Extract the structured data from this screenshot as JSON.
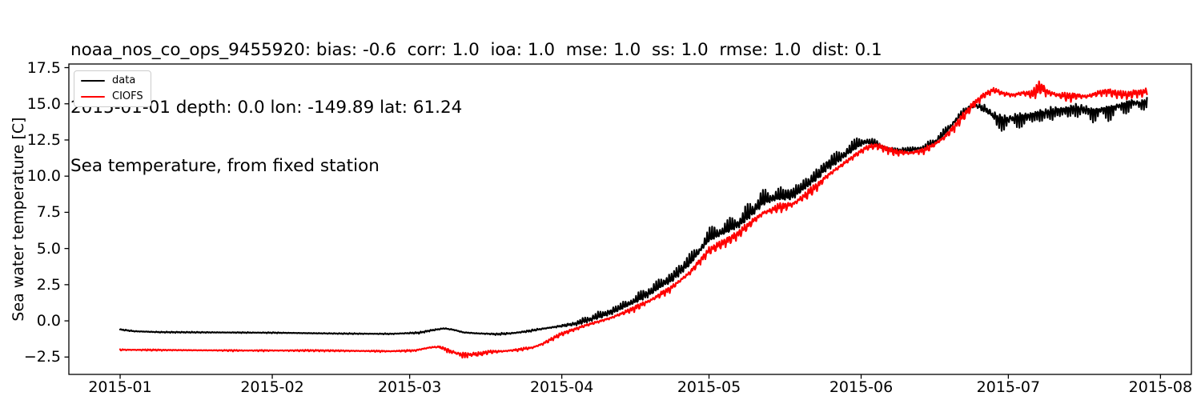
{
  "header": {
    "line1": "noaa_nos_co_ops_9455920: bias: -0.6  corr: 1.0  ioa: 1.0  mse: 1.0  ss: 1.0  rmse: 1.0  dist: 0.1",
    "line2": "2015-01-01 depth: 0.0 lon: -149.89 lat: 61.24",
    "line3": "Sea temperature, from fixed station"
  },
  "chart_data": {
    "type": "line",
    "title": "Sea temperature, from fixed station",
    "xlabel": "",
    "ylabel": "Sea water temperature [C]",
    "x_axis": "time, days since 2015-01-01",
    "xlim_days": [
      -10.45,
      218.3
    ],
    "ylim": [
      -3.7,
      17.75
    ],
    "grid": false,
    "x_ticks": [
      {
        "label": "2015-01",
        "day": 0
      },
      {
        "label": "2015-02",
        "day": 31
      },
      {
        "label": "2015-03",
        "day": 59
      },
      {
        "label": "2015-04",
        "day": 90
      },
      {
        "label": "2015-05",
        "day": 120
      },
      {
        "label": "2015-06",
        "day": 151
      },
      {
        "label": "2015-07",
        "day": 181
      },
      {
        "label": "2015-08",
        "day": 212
      }
    ],
    "y_ticks": [
      {
        "label": "17.5",
        "value": 17.5
      },
      {
        "label": "15.0",
        "value": 15.0
      },
      {
        "label": "12.5",
        "value": 12.5
      },
      {
        "label": "10.0",
        "value": 10.0
      },
      {
        "label": "7.5",
        "value": 7.5
      },
      {
        "label": "5.0",
        "value": 5.0
      },
      {
        "label": "2.5",
        "value": 2.5
      },
      {
        "label": "0.0",
        "value": 0.0
      },
      {
        "label": "−2.5",
        "value": -2.5
      }
    ],
    "legend": {
      "position": "upper left",
      "entries": [
        {
          "label": "data",
          "color": "#000000"
        },
        {
          "label": "CIOFS",
          "color": "#ff0000"
        }
      ]
    },
    "series": [
      {
        "name": "data",
        "color": "#000000",
        "t0": 0,
        "t1": 209.3,
        "phase": 0,
        "anchors": [
          [
            0,
            -0.6
          ],
          [
            3,
            -0.72
          ],
          [
            8,
            -0.78
          ],
          [
            20,
            -0.8
          ],
          [
            31,
            -0.82
          ],
          [
            45,
            -0.88
          ],
          [
            55,
            -0.9
          ],
          [
            61,
            -0.82
          ],
          [
            63,
            -0.68
          ],
          [
            66,
            -0.52
          ],
          [
            68,
            -0.62
          ],
          [
            70,
            -0.8
          ],
          [
            73,
            -0.87
          ],
          [
            77,
            -0.92
          ],
          [
            80,
            -0.85
          ],
          [
            83,
            -0.72
          ],
          [
            86,
            -0.55
          ],
          [
            88,
            -0.45
          ],
          [
            90,
            -0.35
          ],
          [
            93,
            -0.2
          ],
          [
            96,
            0.1
          ],
          [
            100,
            0.55
          ],
          [
            104,
            1.15
          ],
          [
            108,
            1.9
          ],
          [
            112,
            2.75
          ],
          [
            116,
            3.9
          ],
          [
            120,
            5.6
          ],
          [
            123,
            6.1
          ],
          [
            126,
            6.6
          ],
          [
            129,
            7.5
          ],
          [
            131,
            8.2
          ],
          [
            134,
            8.45
          ],
          [
            137,
            8.6
          ],
          [
            140,
            9.3
          ],
          [
            142,
            9.9
          ],
          [
            144,
            10.6
          ],
          [
            146,
            11.0
          ],
          [
            148,
            11.5
          ],
          [
            150,
            12.0
          ],
          [
            152,
            12.35
          ],
          [
            154,
            12.15
          ],
          [
            156,
            11.85
          ],
          [
            158,
            11.72
          ],
          [
            161,
            11.78
          ],
          [
            164,
            11.95
          ],
          [
            166,
            12.3
          ],
          [
            168,
            12.9
          ],
          [
            170,
            13.7
          ],
          [
            172,
            14.4
          ],
          [
            174,
            14.95
          ],
          [
            176,
            14.75
          ],
          [
            178,
            14.3
          ],
          [
            180,
            14.0
          ],
          [
            182,
            14.1
          ],
          [
            184,
            14.25
          ],
          [
            186,
            14.35
          ],
          [
            188,
            14.5
          ],
          [
            190,
            14.6
          ],
          [
            193,
            14.75
          ],
          [
            196,
            14.8
          ],
          [
            198,
            14.6
          ],
          [
            200,
            14.7
          ],
          [
            202,
            14.8
          ],
          [
            204,
            15.0
          ],
          [
            206,
            15.2
          ],
          [
            208,
            15.1
          ],
          [
            209.3,
            15.3
          ]
        ],
        "osc_amp": [
          [
            0,
            0.05
          ],
          [
            55,
            0.05
          ],
          [
            60,
            0.08
          ],
          [
            70,
            0.08
          ],
          [
            85,
            0.1
          ],
          [
            92,
            0.12
          ],
          [
            100,
            0.18
          ],
          [
            108,
            0.22
          ],
          [
            116,
            0.25
          ],
          [
            124,
            0.28
          ],
          [
            132,
            0.3
          ],
          [
            140,
            0.28
          ],
          [
            148,
            0.28
          ],
          [
            153,
            0.22
          ],
          [
            158,
            0.15
          ],
          [
            164,
            0.15
          ],
          [
            170,
            0.2
          ],
          [
            175,
            0.25
          ],
          [
            180,
            0.3
          ],
          [
            190,
            0.3
          ],
          [
            200,
            0.28
          ],
          [
            209.3,
            0.25
          ]
        ],
        "spike_amp": [
          [
            0,
            0
          ],
          [
            90,
            0
          ],
          [
            96,
            0.3
          ],
          [
            104,
            0.5
          ],
          [
            112,
            0.7
          ],
          [
            120,
            0.8
          ],
          [
            130,
            0.85
          ],
          [
            140,
            0.8
          ],
          [
            148,
            0.7
          ],
          [
            152,
            0.5
          ],
          [
            156,
            0.25
          ],
          [
            162,
            0.2
          ],
          [
            168,
            0.4
          ],
          [
            172,
            0.3
          ],
          [
            176,
            0.5
          ],
          [
            180,
            1.15
          ],
          [
            184,
            1.0
          ],
          [
            188,
            1.1
          ],
          [
            192,
            1.0
          ],
          [
            196,
            1.05
          ],
          [
            200,
            1.05
          ],
          [
            204,
            0.9
          ],
          [
            207,
            0.8
          ],
          [
            209.3,
            0.6
          ]
        ],
        "spike_dir": [
          [
            0,
            1
          ],
          [
            172,
            1
          ],
          [
            176,
            -1
          ],
          [
            209.3,
            -1
          ]
        ]
      },
      {
        "name": "CIOFS",
        "color": "#ff0000",
        "t0": 0,
        "t1": 209.3,
        "phase": 2.0,
        "anchors": [
          [
            0,
            -2.0
          ],
          [
            10,
            -2.02
          ],
          [
            25,
            -2.05
          ],
          [
            40,
            -2.05
          ],
          [
            55,
            -2.1
          ],
          [
            60,
            -2.05
          ],
          [
            63,
            -1.85
          ],
          [
            65,
            -1.78
          ],
          [
            67,
            -2.0
          ],
          [
            69,
            -2.25
          ],
          [
            71,
            -2.3
          ],
          [
            73,
            -2.25
          ],
          [
            75,
            -2.15
          ],
          [
            78,
            -2.1
          ],
          [
            81,
            -2.0
          ],
          [
            84,
            -1.85
          ],
          [
            86,
            -1.6
          ],
          [
            88,
            -1.25
          ],
          [
            90,
            -0.9
          ],
          [
            92,
            -0.65
          ],
          [
            95,
            -0.3
          ],
          [
            100,
            0.2
          ],
          [
            104,
            0.75
          ],
          [
            108,
            1.4
          ],
          [
            112,
            2.2
          ],
          [
            116,
            3.3
          ],
          [
            120,
            4.85
          ],
          [
            123,
            5.4
          ],
          [
            126,
            6.0
          ],
          [
            129,
            6.9
          ],
          [
            131,
            7.45
          ],
          [
            134,
            7.8
          ],
          [
            137,
            8.05
          ],
          [
            140,
            8.75
          ],
          [
            142,
            9.3
          ],
          [
            144,
            10.0
          ],
          [
            146,
            10.5
          ],
          [
            148,
            11.0
          ],
          [
            150,
            11.5
          ],
          [
            152,
            11.95
          ],
          [
            154,
            12.1
          ],
          [
            156,
            11.9
          ],
          [
            158,
            11.65
          ],
          [
            161,
            11.6
          ],
          [
            164,
            11.8
          ],
          [
            166,
            12.2
          ],
          [
            168,
            12.7
          ],
          [
            170,
            13.4
          ],
          [
            172,
            14.2
          ],
          [
            174,
            15.0
          ],
          [
            176,
            15.6
          ],
          [
            178,
            15.95
          ],
          [
            180,
            15.7
          ],
          [
            182,
            15.6
          ],
          [
            184,
            15.75
          ],
          [
            186,
            15.6
          ],
          [
            187.5,
            16.1
          ],
          [
            189,
            15.8
          ],
          [
            191,
            15.6
          ],
          [
            193,
            15.5
          ],
          [
            195,
            15.55
          ],
          [
            197,
            15.5
          ],
          [
            199,
            15.7
          ],
          [
            201,
            15.85
          ],
          [
            203,
            15.7
          ],
          [
            205,
            15.6
          ],
          [
            207,
            15.75
          ],
          [
            208.5,
            15.8
          ],
          [
            209.3,
            15.85
          ]
        ],
        "osc_amp": [
          [
            0,
            0.07
          ],
          [
            30,
            0.07
          ],
          [
            55,
            0.08
          ],
          [
            62,
            0.1
          ],
          [
            66,
            0.22
          ],
          [
            72,
            0.22
          ],
          [
            78,
            0.12
          ],
          [
            85,
            0.15
          ],
          [
            92,
            0.2
          ],
          [
            100,
            0.25
          ],
          [
            108,
            0.3
          ],
          [
            116,
            0.35
          ],
          [
            124,
            0.4
          ],
          [
            132,
            0.45
          ],
          [
            140,
            0.45
          ],
          [
            150,
            0.45
          ],
          [
            156,
            0.35
          ],
          [
            163,
            0.3
          ],
          [
            170,
            0.4
          ],
          [
            176,
            0.45
          ],
          [
            182,
            0.45
          ],
          [
            188,
            0.5
          ],
          [
            194,
            0.42
          ],
          [
            200,
            0.4
          ],
          [
            209.3,
            0.35
          ]
        ],
        "spike_amp": [
          [
            0,
            0
          ],
          [
            64,
            0
          ],
          [
            67,
            0.35
          ],
          [
            72,
            0.3
          ],
          [
            76,
            0
          ],
          [
            184,
            0
          ],
          [
            187,
            0.5
          ],
          [
            189,
            0
          ],
          [
            209.3,
            0
          ]
        ],
        "spike_dir": [
          [
            0,
            -1
          ],
          [
            180,
            -1
          ],
          [
            186,
            1
          ],
          [
            209.3,
            1
          ]
        ]
      }
    ]
  }
}
